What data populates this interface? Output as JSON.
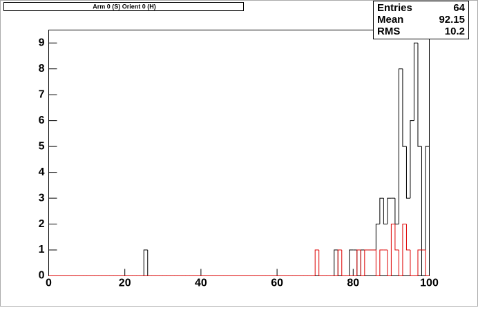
{
  "chart_data": {
    "type": "histogram",
    "title": "Arm 0 (S) Orient 0 (H)",
    "stats": [
      {
        "label": "Entries",
        "value": 64
      },
      {
        "label": "Mean",
        "value": 92.15
      },
      {
        "label": "RMS",
        "value": 10.2
      }
    ],
    "bins": [
      0,
      1,
      2,
      3,
      4,
      5,
      6,
      7,
      8,
      9,
      10,
      11,
      12,
      13,
      14,
      15,
      16,
      17,
      18,
      19,
      20,
      21,
      22,
      23,
      24,
      25,
      26,
      27,
      28,
      29,
      30,
      31,
      32,
      33,
      34,
      35,
      36,
      37,
      38,
      39,
      40,
      41,
      42,
      43,
      44,
      45,
      46,
      47,
      48,
      49,
      50,
      51,
      52,
      53,
      54,
      55,
      56,
      57,
      58,
      59,
      60,
      61,
      62,
      63,
      64,
      65,
      66,
      67,
      68,
      69,
      70,
      71,
      72,
      73,
      74,
      75,
      76,
      77,
      78,
      79,
      80,
      81,
      82,
      83,
      84,
      85,
      86,
      87,
      88,
      89,
      90,
      91,
      92,
      93,
      94,
      95,
      96,
      97,
      98,
      99,
      100
    ],
    "series": [
      {
        "color": "#000000",
        "values": [
          0,
          0,
          0,
          0,
          0,
          0,
          0,
          0,
          0,
          0,
          0,
          0,
          0,
          0,
          0,
          0,
          0,
          0,
          0,
          0,
          0,
          0,
          0,
          0,
          0,
          1,
          0,
          0,
          0,
          0,
          0,
          0,
          0,
          0,
          0,
          0,
          0,
          0,
          0,
          0,
          0,
          0,
          0,
          0,
          0,
          0,
          0,
          0,
          0,
          0,
          0,
          0,
          0,
          0,
          0,
          0,
          0,
          0,
          0,
          0,
          0,
          0,
          0,
          0,
          0,
          0,
          0,
          0,
          0,
          0,
          0,
          0,
          0,
          0,
          0,
          1,
          0,
          0,
          0,
          1,
          1,
          0,
          1,
          1,
          1,
          1,
          2,
          3,
          2,
          3,
          3,
          2,
          8,
          5,
          3,
          6,
          9,
          5,
          0,
          5
        ]
      },
      {
        "color": "#dd0000",
        "values": [
          0,
          0,
          0,
          0,
          0,
          0,
          0,
          0,
          0,
          0,
          0,
          0,
          0,
          0,
          0,
          0,
          0,
          0,
          0,
          0,
          0,
          0,
          0,
          0,
          0,
          0,
          0,
          0,
          0,
          0,
          0,
          0,
          0,
          0,
          0,
          0,
          0,
          0,
          0,
          0,
          0,
          0,
          0,
          0,
          0,
          0,
          0,
          0,
          0,
          0,
          0,
          0,
          0,
          0,
          0,
          0,
          0,
          0,
          0,
          0,
          0,
          0,
          0,
          0,
          0,
          0,
          0,
          0,
          0,
          0,
          1,
          0,
          0,
          0,
          0,
          0,
          1,
          0,
          0,
          0,
          0,
          1,
          0,
          1,
          1,
          1,
          0,
          1,
          1,
          0,
          2,
          1,
          0,
          2,
          1,
          0,
          0,
          1,
          1,
          0
        ]
      }
    ],
    "xlim": [
      0,
      100
    ],
    "xticks": [
      0,
      20,
      40,
      60,
      80,
      100
    ],
    "ylim": [
      0,
      9.5
    ],
    "yticks": [
      0,
      1,
      2,
      3,
      4,
      5,
      6,
      7,
      8,
      9
    ]
  }
}
